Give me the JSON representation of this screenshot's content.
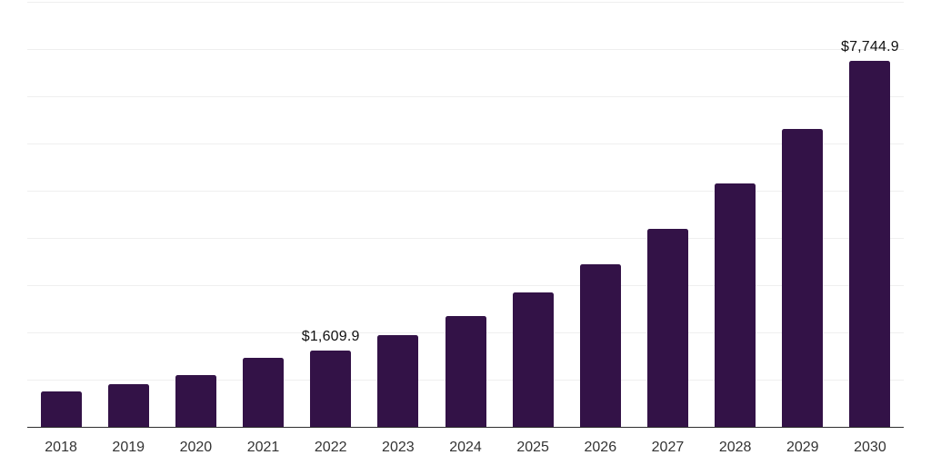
{
  "chart_data": {
    "type": "bar",
    "title": "",
    "xlabel": "",
    "ylabel": "",
    "categories": [
      "2018",
      "2019",
      "2020",
      "2021",
      "2022",
      "2023",
      "2024",
      "2025",
      "2026",
      "2027",
      "2028",
      "2029",
      "2030"
    ],
    "values": [
      755,
      900,
      1095,
      1470,
      1609.9,
      1935,
      2340,
      2840,
      3450,
      4200,
      5150,
      6315,
      7744.9
    ],
    "value_labels": [
      {
        "index": 4,
        "text": "$1,609.9"
      },
      {
        "index": 12,
        "text": "$7,744.9"
      }
    ],
    "ylim": [
      0,
      9000
    ],
    "gridline_interval": 1000,
    "grid": true,
    "legend": "none",
    "colors": {
      "bar": "#331247",
      "axis_line": "#2e2e2e",
      "gridline": "#efefef",
      "value_label_text": "#111111",
      "tick_label_text": "#333333",
      "background": "#ffffff"
    }
  }
}
